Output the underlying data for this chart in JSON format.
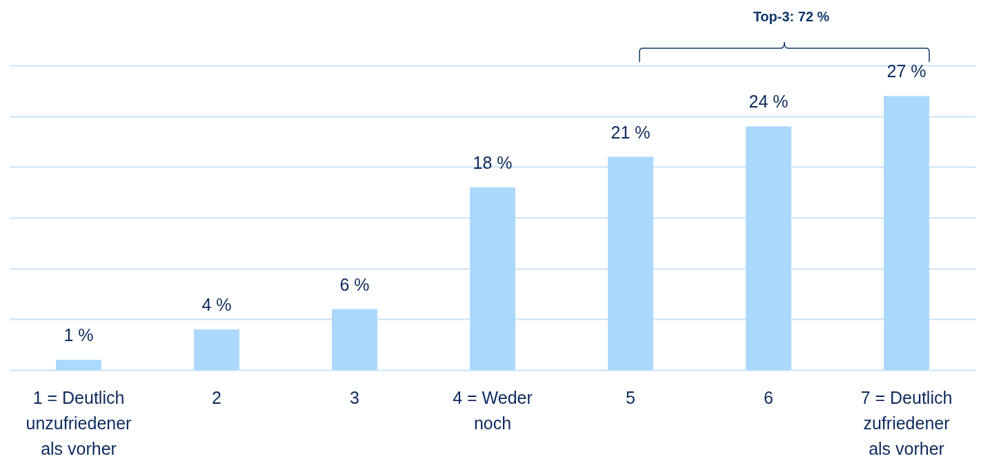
{
  "chart_data": {
    "type": "bar",
    "categories": [
      "1 = Deutlich unzufriedener als vorher",
      "2",
      "3",
      "4 = Weder noch",
      "5",
      "6",
      "7 = Deutlich zufriedener als vorher"
    ],
    "values": [
      1,
      4,
      6,
      18,
      21,
      24,
      27
    ],
    "value_labels": [
      "1 %",
      "4 %",
      "6 %",
      "18 %",
      "21 %",
      "24 %",
      "27 %"
    ],
    "color": "#acd8fe",
    "ylim": [
      0,
      30
    ],
    "yticks": [
      {
        "value": 0,
        "label": null
      },
      {
        "value": 5,
        "label": null
      },
      {
        "value": 10,
        "label": null
      },
      {
        "value": 15,
        "label": null
      },
      {
        "value": 20,
        "label": null
      },
      {
        "value": 25,
        "label": null
      },
      {
        "value": 30,
        "label": null
      }
    ],
    "grid": "y",
    "tick_labels": "x",
    "annotations": [
      "Top-3: 72 %"
    ]
  }
}
